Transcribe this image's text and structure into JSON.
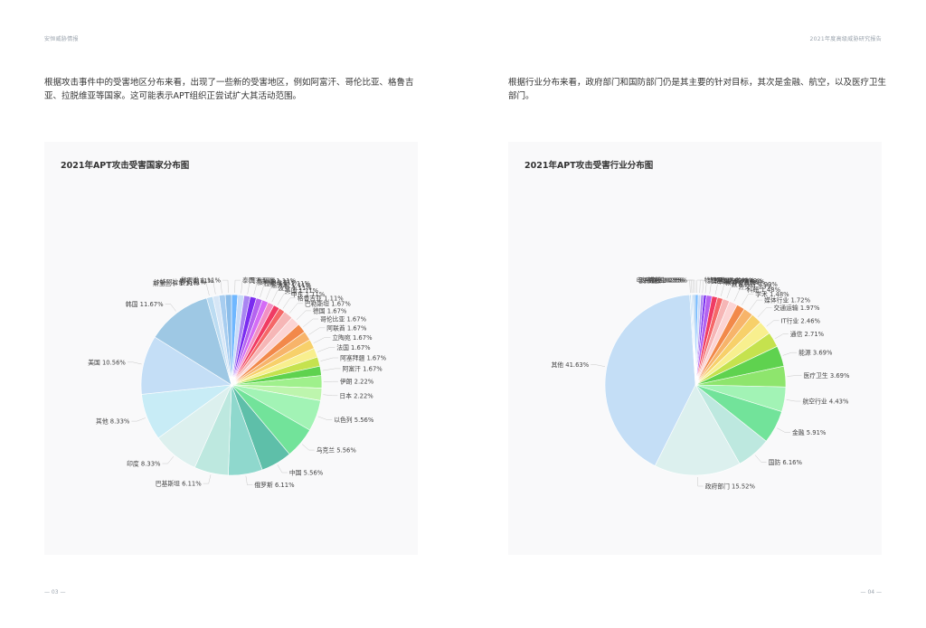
{
  "header": {
    "left": "安恒威胁情报",
    "right": "2021年度高级威胁研究报告"
  },
  "paragraphs": {
    "left": "根据攻击事件中的受害地区分布来看，出现了一些新的受害地区，例如阿富汗、哥伦比亚、格鲁吉亚、拉脱维亚等国家。这可能表示APT组织正尝试扩大其活动范围。",
    "right": "根据行业分布来看，政府部门和国防部门仍是其主要的针对目标，其次是金融、航空，以及医疗卫生部门。"
  },
  "page_numbers": {
    "left": "— 03 —",
    "right": "— 04 —"
  },
  "chart_data": [
    {
      "type": "pie",
      "title": "2021年APT攻击受害国家分布图",
      "slices": [
        {
          "label": "泰国",
          "value": 1.11,
          "color": "#6fb7ff"
        },
        {
          "label": "阿塞拜疆",
          "value": 1.11,
          "color": "#c8dcf8"
        },
        {
          "label": "叙利亚",
          "value": 1.11,
          "color": "#a986f2"
        },
        {
          "label": "拉脱维亚",
          "value": 1.11,
          "color": "#7a2cf0"
        },
        {
          "label": "意大利",
          "value": 1.11,
          "color": "#b463f0"
        },
        {
          "label": "波兰",
          "value": 1.11,
          "color": "#d46cf5"
        },
        {
          "label": "英国",
          "value": 1.11,
          "color": "#f290c3"
        },
        {
          "label": "中东",
          "value": 1.11,
          "color": "#f03b63"
        },
        {
          "label": "格鲁吉亚",
          "value": 1.11,
          "color": "#f56767"
        },
        {
          "label": "巴勒斯坦",
          "value": 1.67,
          "color": "#f6b6b6"
        },
        {
          "label": "德国",
          "value": 1.67,
          "color": "#fcd4d4"
        },
        {
          "label": "哥伦比亚",
          "value": 1.67,
          "color": "#f2894a"
        },
        {
          "label": "阿联酋",
          "value": 1.67,
          "color": "#f7b46a"
        },
        {
          "label": "立陶宛",
          "value": 1.67,
          "color": "#f7d06a"
        },
        {
          "label": "法国",
          "value": 1.67,
          "color": "#f8ef8e"
        },
        {
          "label": "阿塞拜疆",
          "value": 1.67,
          "color": "#c5e24e"
        },
        {
          "label": "阿富汗",
          "value": 1.67,
          "color": "#5fd24f"
        },
        {
          "label": "伊朗",
          "value": 2.22,
          "color": "#9ff08c"
        },
        {
          "label": "日本",
          "value": 2.22,
          "color": "#bdf5ad"
        },
        {
          "label": "以色列",
          "value": 5.56,
          "color": "#a2f3b5"
        },
        {
          "label": "乌克兰",
          "value": 5.56,
          "color": "#72e39a"
        },
        {
          "label": "中国",
          "value": 5.56,
          "color": "#5ebfa9"
        },
        {
          "label": "俄罗斯",
          "value": 6.11,
          "color": "#8fd8cd"
        },
        {
          "label": "巴基斯坦",
          "value": 6.11,
          "color": "#bde8df"
        },
        {
          "label": "印度",
          "value": 8.33,
          "color": "#dcf0ee"
        },
        {
          "label": "其他",
          "value": 8.33,
          "color": "#c8ecf6"
        },
        {
          "label": "美国",
          "value": 10.56,
          "color": "#c4def6"
        },
        {
          "label": "韩国",
          "value": 11.67,
          "color": "#9ec8e4"
        },
        {
          "label": "斯里兰卡",
          "value": 1.11,
          "color": "#bcdcf2"
        },
        {
          "label": "沙特阿拉伯",
          "value": 1.11,
          "color": "#d6e6f6"
        },
        {
          "label": "南非",
          "value": 1.11,
          "color": "#a7cdf0"
        },
        {
          "label": "黎巴嫩",
          "value": 1.11,
          "color": "#8cbde9"
        }
      ]
    },
    {
      "type": "pie",
      "title": "2021年APT攻击受害行业分布图",
      "slices": [
        {
          "label": "物联网IOT",
          "value": 0.49,
          "color": "#6fb7ff"
        },
        {
          "label": "能源业",
          "value": 0.49,
          "color": "#c8dcf8"
        },
        {
          "label": "食品和农业",
          "value": 0.49,
          "color": "#a986f2"
        },
        {
          "label": "制造业",
          "value": 0.49,
          "color": "#7a2cf0"
        },
        {
          "label": "科技公司",
          "value": 0.99,
          "color": "#b463f0"
        },
        {
          "label": "教育",
          "value": 0.99,
          "color": "#f03b63"
        },
        {
          "label": "教育科研",
          "value": 0.99,
          "color": "#f56767"
        },
        {
          "label": "外交",
          "value": 1.23,
          "color": "#f6b6b6"
        },
        {
          "label": "科研",
          "value": 1.48,
          "color": "#fcd4d4"
        },
        {
          "label": "学术",
          "value": 1.48,
          "color": "#f2894a"
        },
        {
          "label": "媒体行业",
          "value": 1.72,
          "color": "#f7b46a"
        },
        {
          "label": "交通运输",
          "value": 1.97,
          "color": "#f7d06a"
        },
        {
          "label": "IT行业",
          "value": 2.46,
          "color": "#f8ef8e"
        },
        {
          "label": "通信",
          "value": 2.71,
          "color": "#c5e24e"
        },
        {
          "label": "能源",
          "value": 3.69,
          "color": "#5fd24f"
        },
        {
          "label": "医疗卫生",
          "value": 3.69,
          "color": "#8ee56d"
        },
        {
          "label": "航空行业",
          "value": 4.43,
          "color": "#a2f3b5"
        },
        {
          "label": "金融",
          "value": 5.91,
          "color": "#72e39a"
        },
        {
          "label": "国防",
          "value": 6.16,
          "color": "#bde8df"
        },
        {
          "label": "政府部门",
          "value": 15.52,
          "color": "#dcf0ee"
        },
        {
          "label": "其他",
          "value": 41.63,
          "color": "#c4def6"
        },
        {
          "label": "电子商务",
          "value": 0.25,
          "color": "#bcdcf2"
        },
        {
          "label": "公用事业",
          "value": 0.25,
          "color": "#d6e6f6"
        },
        {
          "label": "政治组织",
          "value": 0.25,
          "color": "#a7cdf0"
        },
        {
          "label": "博彩业",
          "value": 0.25,
          "color": "#8cbde9"
        }
      ]
    }
  ]
}
